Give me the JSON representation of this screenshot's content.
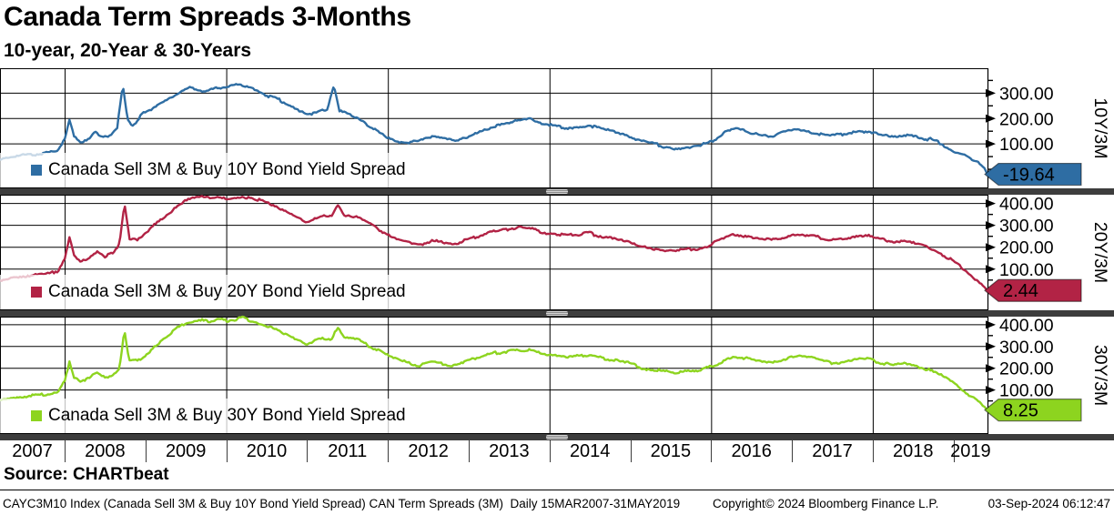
{
  "header": {
    "title": "Canada Term Spreads 3-Months",
    "subtitle": "10-year, 20-Year & 30-Years"
  },
  "source_line": "Source: CHARTbeat",
  "footer": {
    "left": "CAYC3M10 Index (Canada Sell 3M & Buy 10Y Bond Yield Spread) CAN Term Spreads (3M)  Daily 15MAR2007-31MAY2019",
    "center": "Copyright© 2024 Bloomberg Finance L.P.",
    "right": "03-Sep-2024 06:12:47"
  },
  "x_axis": {
    "years": [
      "2007",
      "2008",
      "2009",
      "2010",
      "2011",
      "2012",
      "2013",
      "2014",
      "2015",
      "2016",
      "2017",
      "2018",
      "2019"
    ],
    "start": 2007.2,
    "end": 2019.42,
    "gridline_years": [
      2008,
      2010,
      2012,
      2014,
      2016,
      2018
    ]
  },
  "chart_data": [
    {
      "type": "line",
      "name": "10Y-3M spread",
      "legend": "Canada Sell 3M & Buy 10Y Bond Yield Spread",
      "axis_label": "10Y/3M",
      "last_value": "-19.64",
      "last_value_num": -19.64,
      "color": "#2e6da3",
      "badge_text_color": "#ffffff",
      "y_ticks": [
        300,
        200,
        100
      ],
      "ylim": [
        -75,
        398
      ],
      "noise_amp": 5,
      "points": [
        [
          2007.2,
          42
        ],
        [
          2007.35,
          50
        ],
        [
          2007.5,
          58
        ],
        [
          2007.65,
          60
        ],
        [
          2007.8,
          68
        ],
        [
          2007.92,
          75
        ],
        [
          2008.0,
          120
        ],
        [
          2008.06,
          200
        ],
        [
          2008.12,
          130
        ],
        [
          2008.2,
          105
        ],
        [
          2008.3,
          120
        ],
        [
          2008.38,
          150
        ],
        [
          2008.45,
          125
        ],
        [
          2008.55,
          135
        ],
        [
          2008.65,
          165
        ],
        [
          2008.72,
          330
        ],
        [
          2008.78,
          195
        ],
        [
          2008.85,
          175
        ],
        [
          2008.95,
          215
        ],
        [
          2009.05,
          230
        ],
        [
          2009.15,
          255
        ],
        [
          2009.25,
          270
        ],
        [
          2009.35,
          290
        ],
        [
          2009.45,
          310
        ],
        [
          2009.55,
          325
        ],
        [
          2009.65,
          315
        ],
        [
          2009.75,
          305
        ],
        [
          2009.85,
          320
        ],
        [
          2009.95,
          315
        ],
        [
          2010.05,
          325
        ],
        [
          2010.15,
          340
        ],
        [
          2010.25,
          330
        ],
        [
          2010.35,
          315
        ],
        [
          2010.45,
          300
        ],
        [
          2010.55,
          285
        ],
        [
          2010.65,
          275
        ],
        [
          2010.75,
          260
        ],
        [
          2010.85,
          245
        ],
        [
          2010.95,
          225
        ],
        [
          2011.05,
          215
        ],
        [
          2011.15,
          225
        ],
        [
          2011.25,
          235
        ],
        [
          2011.33,
          330
        ],
        [
          2011.4,
          230
        ],
        [
          2011.5,
          225
        ],
        [
          2011.6,
          205
        ],
        [
          2011.7,
          185
        ],
        [
          2011.8,
          165
        ],
        [
          2011.9,
          150
        ],
        [
          2012.0,
          125
        ],
        [
          2012.1,
          110
        ],
        [
          2012.25,
          105
        ],
        [
          2012.4,
          112
        ],
        [
          2012.55,
          125
        ],
        [
          2012.7,
          118
        ],
        [
          2012.85,
          108
        ],
        [
          2013.0,
          130
        ],
        [
          2013.15,
          150
        ],
        [
          2013.3,
          170
        ],
        [
          2013.45,
          180
        ],
        [
          2013.6,
          195
        ],
        [
          2013.75,
          200
        ],
        [
          2013.9,
          180
        ],
        [
          2014.05,
          170
        ],
        [
          2014.2,
          158
        ],
        [
          2014.35,
          165
        ],
        [
          2014.5,
          172
        ],
        [
          2014.65,
          158
        ],
        [
          2014.8,
          150
        ],
        [
          2014.95,
          138
        ],
        [
          2015.1,
          112
        ],
        [
          2015.25,
          100
        ],
        [
          2015.4,
          92
        ],
        [
          2015.55,
          82
        ],
        [
          2015.7,
          88
        ],
        [
          2015.85,
          92
        ],
        [
          2016.0,
          108
        ],
        [
          2016.15,
          140
        ],
        [
          2016.3,
          158
        ],
        [
          2016.45,
          148
        ],
        [
          2016.6,
          132
        ],
        [
          2016.75,
          128
        ],
        [
          2016.9,
          148
        ],
        [
          2017.05,
          158
        ],
        [
          2017.2,
          150
        ],
        [
          2017.35,
          140
        ],
        [
          2017.5,
          132
        ],
        [
          2017.65,
          138
        ],
        [
          2017.8,
          148
        ],
        [
          2017.95,
          152
        ],
        [
          2018.1,
          138
        ],
        [
          2018.25,
          128
        ],
        [
          2018.4,
          135
        ],
        [
          2018.55,
          128
        ],
        [
          2018.7,
          118
        ],
        [
          2018.85,
          102
        ],
        [
          2019.0,
          72
        ],
        [
          2019.1,
          58
        ],
        [
          2019.2,
          42
        ],
        [
          2019.3,
          28
        ],
        [
          2019.38,
          5
        ],
        [
          2019.42,
          -19.64
        ]
      ]
    },
    {
      "type": "line",
      "name": "20Y-3M spread",
      "legend": "Canada Sell 3M & Buy 20Y Bond Yield Spread",
      "axis_label": "20Y/3M",
      "last_value": "2.44",
      "last_value_num": 2.44,
      "color": "#b22345",
      "badge_text_color": "#ffffff",
      "y_ticks": [
        400,
        300,
        200,
        100
      ],
      "ylim": [
        -88,
        440
      ],
      "noise_amp": 6,
      "points": [
        [
          2007.2,
          52
        ],
        [
          2007.4,
          62
        ],
        [
          2007.6,
          68
        ],
        [
          2007.8,
          78
        ],
        [
          2007.92,
          90
        ],
        [
          2008.0,
          150
        ],
        [
          2008.06,
          250
        ],
        [
          2008.12,
          165
        ],
        [
          2008.2,
          140
        ],
        [
          2008.3,
          155
        ],
        [
          2008.4,
          185
        ],
        [
          2008.5,
          160
        ],
        [
          2008.6,
          175
        ],
        [
          2008.68,
          210
        ],
        [
          2008.74,
          395
        ],
        [
          2008.8,
          240
        ],
        [
          2008.9,
          235
        ],
        [
          2009.0,
          265
        ],
        [
          2009.1,
          300
        ],
        [
          2009.2,
          330
        ],
        [
          2009.3,
          360
        ],
        [
          2009.4,
          390
        ],
        [
          2009.5,
          410
        ],
        [
          2009.6,
          425
        ],
        [
          2009.7,
          430
        ],
        [
          2009.8,
          420
        ],
        [
          2009.9,
          428
        ],
        [
          2010.0,
          422
        ],
        [
          2010.1,
          430
        ],
        [
          2010.2,
          435
        ],
        [
          2010.3,
          428
        ],
        [
          2010.4,
          415
        ],
        [
          2010.5,
          400
        ],
        [
          2010.6,
          385
        ],
        [
          2010.7,
          368
        ],
        [
          2010.8,
          350
        ],
        [
          2010.9,
          330
        ],
        [
          2011.0,
          315
        ],
        [
          2011.1,
          330
        ],
        [
          2011.2,
          340
        ],
        [
          2011.3,
          338
        ],
        [
          2011.38,
          390
        ],
        [
          2011.45,
          345
        ],
        [
          2011.55,
          340
        ],
        [
          2011.65,
          330
        ],
        [
          2011.75,
          310
        ],
        [
          2011.85,
          290
        ],
        [
          2011.95,
          270
        ],
        [
          2012.1,
          245
        ],
        [
          2012.25,
          228
        ],
        [
          2012.4,
          215
        ],
        [
          2012.55,
          230
        ],
        [
          2012.7,
          222
        ],
        [
          2012.85,
          215
        ],
        [
          2013.0,
          235
        ],
        [
          2013.15,
          255
        ],
        [
          2013.3,
          272
        ],
        [
          2013.45,
          282
        ],
        [
          2013.6,
          292
        ],
        [
          2013.75,
          288
        ],
        [
          2013.9,
          272
        ],
        [
          2014.05,
          262
        ],
        [
          2014.2,
          250
        ],
        [
          2014.35,
          258
        ],
        [
          2014.5,
          265
        ],
        [
          2014.65,
          252
        ],
        [
          2014.8,
          242
        ],
        [
          2014.95,
          230
        ],
        [
          2015.1,
          210
        ],
        [
          2015.25,
          198
        ],
        [
          2015.4,
          190
        ],
        [
          2015.55,
          182
        ],
        [
          2015.7,
          188
        ],
        [
          2015.85,
          192
        ],
        [
          2016.0,
          212
        ],
        [
          2016.15,
          240
        ],
        [
          2016.3,
          262
        ],
        [
          2016.45,
          252
        ],
        [
          2016.6,
          238
        ],
        [
          2016.75,
          232
        ],
        [
          2016.9,
          248
        ],
        [
          2017.05,
          262
        ],
        [
          2017.2,
          255
        ],
        [
          2017.35,
          242
        ],
        [
          2017.5,
          232
        ],
        [
          2017.65,
          238
        ],
        [
          2017.8,
          248
        ],
        [
          2017.95,
          250
        ],
        [
          2018.1,
          235
        ],
        [
          2018.25,
          222
        ],
        [
          2018.4,
          228
        ],
        [
          2018.55,
          215
        ],
        [
          2018.7,
          198
        ],
        [
          2018.85,
          172
        ],
        [
          2019.0,
          135
        ],
        [
          2019.1,
          105
        ],
        [
          2019.2,
          75
        ],
        [
          2019.3,
          48
        ],
        [
          2019.38,
          20
        ],
        [
          2019.42,
          2.44
        ]
      ]
    },
    {
      "type": "line",
      "name": "30Y-3M spread",
      "legend": "Canada Sell 3M & Buy 30Y Bond Yield Spread",
      "axis_label": "30Y/3M",
      "last_value": "8.25",
      "last_value_num": 8.25,
      "color": "#8dd41f",
      "badge_text_color": "#000000",
      "y_ticks": [
        400,
        300,
        200,
        100
      ],
      "ylim": [
        -102,
        437
      ],
      "noise_amp": 6,
      "points": [
        [
          2007.2,
          58
        ],
        [
          2007.4,
          66
        ],
        [
          2007.6,
          72
        ],
        [
          2007.8,
          80
        ],
        [
          2007.92,
          92
        ],
        [
          2008.0,
          145
        ],
        [
          2008.06,
          235
        ],
        [
          2008.12,
          160
        ],
        [
          2008.2,
          138
        ],
        [
          2008.3,
          152
        ],
        [
          2008.4,
          180
        ],
        [
          2008.5,
          158
        ],
        [
          2008.6,
          172
        ],
        [
          2008.68,
          205
        ],
        [
          2008.74,
          380
        ],
        [
          2008.8,
          235
        ],
        [
          2008.9,
          232
        ],
        [
          2009.0,
          262
        ],
        [
          2009.1,
          295
        ],
        [
          2009.2,
          325
        ],
        [
          2009.3,
          355
        ],
        [
          2009.4,
          385
        ],
        [
          2009.5,
          405
        ],
        [
          2009.6,
          418
        ],
        [
          2009.7,
          428
        ],
        [
          2009.8,
          415
        ],
        [
          2009.9,
          422
        ],
        [
          2010.0,
          418
        ],
        [
          2010.1,
          425
        ],
        [
          2010.2,
          430
        ],
        [
          2010.3,
          422
        ],
        [
          2010.4,
          410
        ],
        [
          2010.5,
          395
        ],
        [
          2010.6,
          380
        ],
        [
          2010.7,
          362
        ],
        [
          2010.8,
          345
        ],
        [
          2010.9,
          325
        ],
        [
          2011.0,
          310
        ],
        [
          2011.1,
          322
        ],
        [
          2011.2,
          335
        ],
        [
          2011.3,
          332
        ],
        [
          2011.38,
          382
        ],
        [
          2011.45,
          340
        ],
        [
          2011.55,
          335
        ],
        [
          2011.65,
          325
        ],
        [
          2011.75,
          305
        ],
        [
          2011.85,
          285
        ],
        [
          2011.95,
          265
        ],
        [
          2012.1,
          242
        ],
        [
          2012.25,
          225
        ],
        [
          2012.4,
          212
        ],
        [
          2012.55,
          228
        ],
        [
          2012.7,
          220
        ],
        [
          2012.85,
          212
        ],
        [
          2013.0,
          232
        ],
        [
          2013.15,
          252
        ],
        [
          2013.3,
          268
        ],
        [
          2013.45,
          278
        ],
        [
          2013.6,
          288
        ],
        [
          2013.75,
          283
        ],
        [
          2013.9,
          268
        ],
        [
          2014.05,
          258
        ],
        [
          2014.2,
          246
        ],
        [
          2014.35,
          254
        ],
        [
          2014.5,
          260
        ],
        [
          2014.65,
          248
        ],
        [
          2014.8,
          238
        ],
        [
          2014.95,
          226
        ],
        [
          2015.1,
          206
        ],
        [
          2015.25,
          194
        ],
        [
          2015.4,
          186
        ],
        [
          2015.55,
          178
        ],
        [
          2015.7,
          184
        ],
        [
          2015.85,
          188
        ],
        [
          2016.0,
          208
        ],
        [
          2016.15,
          235
        ],
        [
          2016.3,
          256
        ],
        [
          2016.45,
          246
        ],
        [
          2016.6,
          232
        ],
        [
          2016.75,
          226
        ],
        [
          2016.9,
          242
        ],
        [
          2017.05,
          256
        ],
        [
          2017.2,
          248
        ],
        [
          2017.35,
          236
        ],
        [
          2017.5,
          226
        ],
        [
          2017.65,
          232
        ],
        [
          2017.8,
          242
        ],
        [
          2017.95,
          244
        ],
        [
          2018.1,
          228
        ],
        [
          2018.25,
          215
        ],
        [
          2018.4,
          220
        ],
        [
          2018.55,
          208
        ],
        [
          2018.7,
          190
        ],
        [
          2018.85,
          165
        ],
        [
          2019.0,
          130
        ],
        [
          2019.1,
          102
        ],
        [
          2019.2,
          75
        ],
        [
          2019.3,
          50
        ],
        [
          2019.38,
          25
        ],
        [
          2019.42,
          8.25
        ]
      ]
    }
  ]
}
